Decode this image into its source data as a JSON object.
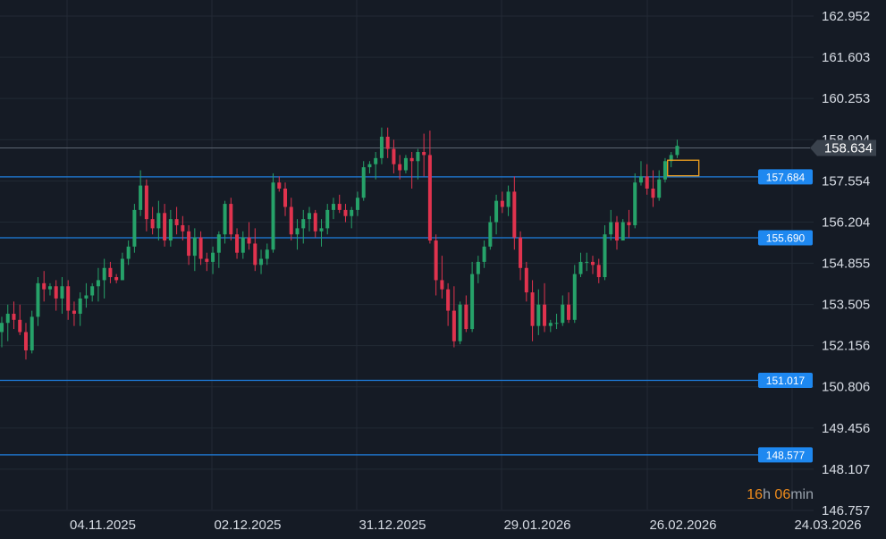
{
  "chart_data": {
    "type": "candlestick",
    "grid": true,
    "colors": {
      "background": "#151b25",
      "grid": "#222a35",
      "up": "#26a269",
      "down": "#e0334e",
      "level_line": "#1e7fe0",
      "level_tag": "#1e88f0",
      "current_price_line": "#5c6470",
      "current_price_tag": "#3a424d",
      "highlight_box": "#f0a020",
      "tick_text": "#d6dbe3"
    },
    "y_axis": {
      "range": [
        146.3,
        163.4
      ],
      "ticks": [
        "162.952",
        "161.603",
        "160.253",
        "158.904",
        "157.554",
        "156.204",
        "154.855",
        "153.505",
        "152.156",
        "150.806",
        "149.456",
        "148.107",
        "146.757"
      ]
    },
    "x_axis": {
      "ticks": [
        "04.11.2025",
        "02.12.2025",
        "31.12.2025",
        "29.01.2026",
        "26.02.2026",
        "24.03.2026"
      ]
    },
    "levels": [
      "157.684",
      "155.690",
      "151.017",
      "148.577"
    ],
    "current_price": "158.634",
    "highlight": {
      "from_index": 111,
      "to_index": 115,
      "low": 157.72,
      "high": 158.23
    },
    "candles": [
      [
        152.6,
        153.1,
        152.1,
        152.9
      ],
      [
        152.9,
        153.5,
        152.3,
        153.2
      ],
      [
        153.2,
        153.6,
        152.7,
        153.0
      ],
      [
        153.0,
        153.5,
        152.5,
        152.6
      ],
      [
        152.6,
        152.9,
        151.7,
        152.0
      ],
      [
        152.0,
        153.3,
        151.9,
        153.1
      ],
      [
        153.1,
        154.4,
        152.8,
        154.2
      ],
      [
        154.2,
        154.6,
        153.6,
        154.0
      ],
      [
        154.0,
        154.2,
        153.8,
        154.1
      ],
      [
        154.1,
        154.3,
        153.3,
        153.7
      ],
      [
        153.7,
        154.4,
        153.2,
        154.1
      ],
      [
        154.1,
        154.3,
        153.0,
        153.3
      ],
      [
        153.3,
        153.6,
        152.8,
        153.2
      ],
      [
        153.2,
        153.9,
        152.8,
        153.7
      ],
      [
        153.7,
        154.2,
        153.4,
        153.8
      ],
      [
        153.8,
        154.2,
        153.6,
        154.1
      ],
      [
        154.1,
        154.7,
        153.6,
        154.3
      ],
      [
        154.3,
        155.0,
        153.7,
        154.7
      ],
      [
        154.7,
        154.9,
        154.2,
        154.4
      ],
      [
        154.4,
        154.5,
        154.2,
        154.3
      ],
      [
        154.3,
        155.2,
        154.3,
        155.0
      ],
      [
        155.0,
        155.6,
        154.8,
        155.4
      ],
      [
        155.4,
        156.8,
        155.2,
        156.6
      ],
      [
        156.6,
        157.9,
        156.4,
        157.4
      ],
      [
        157.4,
        157.6,
        155.9,
        156.3
      ],
      [
        156.3,
        156.7,
        155.8,
        156.0
      ],
      [
        156.0,
        156.9,
        155.6,
        156.5
      ],
      [
        156.5,
        156.8,
        155.4,
        155.6
      ],
      [
        155.6,
        156.6,
        155.4,
        156.3
      ],
      [
        156.3,
        156.7,
        155.8,
        156.1
      ],
      [
        156.1,
        156.4,
        155.6,
        155.9
      ],
      [
        155.9,
        156.1,
        154.8,
        155.1
      ],
      [
        155.1,
        156.0,
        154.6,
        155.7
      ],
      [
        155.7,
        155.9,
        154.8,
        155.0
      ],
      [
        155.0,
        155.2,
        154.6,
        154.9
      ],
      [
        154.9,
        155.4,
        154.5,
        155.2
      ],
      [
        155.2,
        155.9,
        154.7,
        155.8
      ],
      [
        155.8,
        156.9,
        155.5,
        156.8
      ],
      [
        156.8,
        157.0,
        155.6,
        155.8
      ],
      [
        155.8,
        156.0,
        155.0,
        155.2
      ],
      [
        155.2,
        155.9,
        155.0,
        155.7
      ],
      [
        155.7,
        156.2,
        155.3,
        155.5
      ],
      [
        155.5,
        156.0,
        154.6,
        154.8
      ],
      [
        154.8,
        155.3,
        154.5,
        155.0
      ],
      [
        155.0,
        155.5,
        154.8,
        155.3
      ],
      [
        155.3,
        157.8,
        155.2,
        157.5
      ],
      [
        157.5,
        157.7,
        157.2,
        157.3
      ],
      [
        157.3,
        157.5,
        156.4,
        156.7
      ],
      [
        156.7,
        157.0,
        155.6,
        155.8
      ],
      [
        155.8,
        156.3,
        155.3,
        156.0
      ],
      [
        156.0,
        156.6,
        155.5,
        156.3
      ],
      [
        156.3,
        156.7,
        155.9,
        156.5
      ],
      [
        156.5,
        156.6,
        155.7,
        155.9
      ],
      [
        155.9,
        156.3,
        155.4,
        156.0
      ],
      [
        156.0,
        156.8,
        155.8,
        156.6
      ],
      [
        156.6,
        157.0,
        156.3,
        156.8
      ],
      [
        156.8,
        157.1,
        156.5,
        156.6
      ],
      [
        156.6,
        156.8,
        156.2,
        156.4
      ],
      [
        156.4,
        156.7,
        156.0,
        156.6
      ],
      [
        156.6,
        157.2,
        156.4,
        157.0
      ],
      [
        157.0,
        158.2,
        156.9,
        158.0
      ],
      [
        158.0,
        158.2,
        157.8,
        158.1
      ],
      [
        158.1,
        158.5,
        157.6,
        158.3
      ],
      [
        158.3,
        159.3,
        158.1,
        159.0
      ],
      [
        159.0,
        159.3,
        158.3,
        158.6
      ],
      [
        158.6,
        158.9,
        157.8,
        158.1
      ],
      [
        158.1,
        158.4,
        157.6,
        157.9
      ],
      [
        157.9,
        158.4,
        157.8,
        158.3
      ],
      [
        158.3,
        158.5,
        157.3,
        158.2
      ],
      [
        158.2,
        158.6,
        157.6,
        158.5
      ],
      [
        158.5,
        159.1,
        157.7,
        158.4
      ],
      [
        158.4,
        159.2,
        155.5,
        155.6
      ],
      [
        155.6,
        155.8,
        153.8,
        154.3
      ],
      [
        154.3,
        155.1,
        153.7,
        154.0
      ],
      [
        154.0,
        154.2,
        152.8,
        153.3
      ],
      [
        153.3,
        154.1,
        152.1,
        152.3
      ],
      [
        152.3,
        153.6,
        152.2,
        153.5
      ],
      [
        153.5,
        153.8,
        152.6,
        152.7
      ],
      [
        152.7,
        154.9,
        152.6,
        154.5
      ],
      [
        154.5,
        155.1,
        154.2,
        154.9
      ],
      [
        154.9,
        155.6,
        154.7,
        155.4
      ],
      [
        155.4,
        156.4,
        155.3,
        156.2
      ],
      [
        156.2,
        157.1,
        155.8,
        156.9
      ],
      [
        156.9,
        157.2,
        156.5,
        156.7
      ],
      [
        156.7,
        157.4,
        156.4,
        157.2
      ],
      [
        157.2,
        157.7,
        155.3,
        155.7
      ],
      [
        155.7,
        155.9,
        154.3,
        154.7
      ],
      [
        154.7,
        154.9,
        153.6,
        153.9
      ],
      [
        153.9,
        154.3,
        152.3,
        152.8
      ],
      [
        152.8,
        154.0,
        152.5,
        153.5
      ],
      [
        153.5,
        154.2,
        152.6,
        152.8
      ],
      [
        152.8,
        153.0,
        152.6,
        152.9
      ],
      [
        152.9,
        153.2,
        152.7,
        152.9
      ],
      [
        152.9,
        153.8,
        152.8,
        153.5
      ],
      [
        153.5,
        153.9,
        152.9,
        153.0
      ],
      [
        153.0,
        154.8,
        152.9,
        154.5
      ],
      [
        154.5,
        155.2,
        154.4,
        154.9
      ],
      [
        154.9,
        155.2,
        154.6,
        154.9
      ],
      [
        154.9,
        155.1,
        154.5,
        154.8
      ],
      [
        154.8,
        155.0,
        154.2,
        154.4
      ],
      [
        154.4,
        156.1,
        154.3,
        155.8
      ],
      [
        155.8,
        156.6,
        155.6,
        156.2
      ],
      [
        156.2,
        156.4,
        155.3,
        155.6
      ],
      [
        155.6,
        156.3,
        155.6,
        156.2
      ],
      [
        156.2,
        156.6,
        155.7,
        156.1
      ],
      [
        156.1,
        157.8,
        156.0,
        157.5
      ],
      [
        157.5,
        158.2,
        157.4,
        157.7
      ],
      [
        157.7,
        158.1,
        157.1,
        157.3
      ],
      [
        157.3,
        157.9,
        156.7,
        157.0
      ],
      [
        157.0,
        157.9,
        156.9,
        157.6
      ],
      [
        157.6,
        158.3,
        157.5,
        158.2
      ],
      [
        158.2,
        158.5,
        158.0,
        158.4
      ],
      [
        158.4,
        158.9,
        158.3,
        158.7
      ]
    ]
  },
  "timer": {
    "hours": "16",
    "hours_unit": "h",
    "minutes": "06",
    "minutes_unit": "min"
  }
}
